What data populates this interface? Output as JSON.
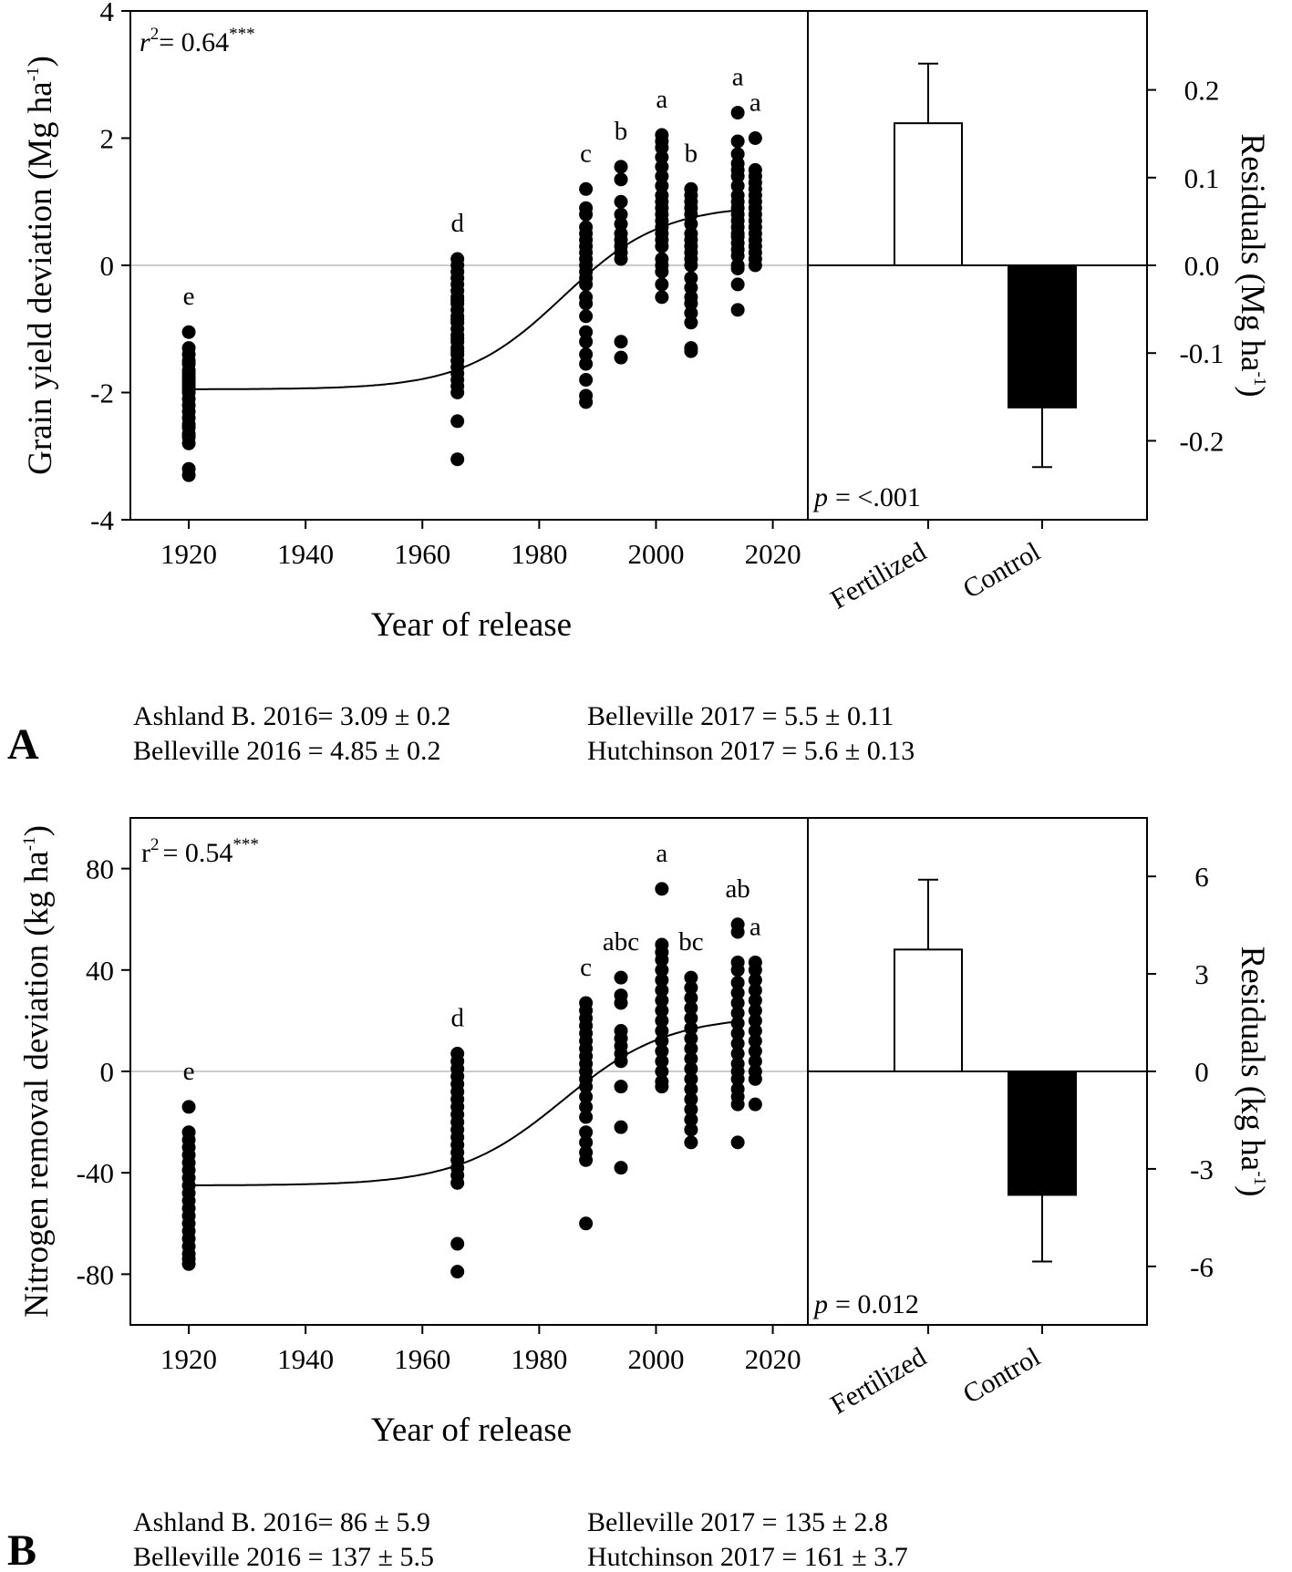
{
  "chart_data": [
    {
      "type": "scatter",
      "panel_label": "A",
      "xlabel": "Year of release",
      "ylabel": "Grain yield deviation (Mg ha",
      "ylabel_sup": "-1",
      "ylabel_close": ")",
      "xlim": [
        1910,
        2026
      ],
      "ylim": [
        -4,
        4
      ],
      "xticks": [
        "1920",
        "1940",
        "1960",
        "1980",
        "2000",
        "2020"
      ],
      "xtick_values": [
        1920,
        1940,
        1960,
        1980,
        2000,
        2020
      ],
      "yticks": [
        "-4",
        "-2",
        "0",
        "2",
        "4"
      ],
      "ytick_values": [
        -4,
        -2,
        0,
        2,
        4
      ],
      "fit": {
        "r2_prefix": "r",
        "r2_sup": "2",
        "r2_value": "= 0.64",
        "r2_stars": "***",
        "lower": -1.95,
        "upper": 0.95,
        "midpoint_year": 1984,
        "scale_years": 8.5,
        "x_start": 1920,
        "x_end": 2014
      },
      "series": [
        {
          "year": 1920,
          "letter": "e",
          "values": [
            -1.05,
            -1.3,
            -1.4,
            -1.5,
            -1.55,
            -1.65,
            -1.7,
            -1.75,
            -1.8,
            -1.85,
            -1.9,
            -1.95,
            -2.0,
            -2.1,
            -2.2,
            -2.3,
            -2.4,
            -2.5,
            -2.55,
            -2.65,
            -2.7,
            -2.8,
            -3.2,
            -3.3
          ]
        },
        {
          "year": 1966,
          "letter": "d",
          "values": [
            0.1,
            0.0,
            -0.1,
            -0.2,
            -0.3,
            -0.4,
            -0.5,
            -0.55,
            -0.6,
            -0.7,
            -0.8,
            -0.85,
            -0.9,
            -1.0,
            -1.1,
            -1.15,
            -1.2,
            -1.3,
            -1.35,
            -1.4,
            -1.5,
            -1.6,
            -1.7,
            -1.8,
            -1.9,
            -2.0,
            -2.45,
            -3.05
          ]
        },
        {
          "year": 1988,
          "letter": "c",
          "values": [
            1.2,
            0.9,
            0.8,
            0.6,
            0.5,
            0.4,
            0.3,
            0.2,
            0.1,
            0.0,
            -0.1,
            -0.2,
            -0.3,
            -0.5,
            -0.6,
            -0.8,
            -1.05,
            -1.2,
            -1.4,
            -1.55,
            -1.8,
            -2.05,
            -2.15
          ]
        },
        {
          "year": 1994,
          "letter": "b",
          "values": [
            1.55,
            1.35,
            1.0,
            0.8,
            0.65,
            0.5,
            0.4,
            0.3,
            0.2,
            0.1,
            -1.2,
            -1.45
          ]
        },
        {
          "year": 2001,
          "letter": "a",
          "values": [
            2.05,
            1.95,
            1.85,
            1.7,
            1.55,
            1.4,
            1.25,
            1.1,
            1.0,
            0.9,
            0.8,
            0.7,
            0.6,
            0.5,
            0.4,
            0.3,
            0.1,
            0.0,
            -0.1,
            -0.3,
            -0.5
          ]
        },
        {
          "year": 2006,
          "letter": "b",
          "values": [
            1.2,
            1.1,
            1.0,
            0.9,
            0.8,
            0.65,
            0.5,
            0.4,
            0.3,
            0.2,
            0.1,
            0.0,
            -0.2,
            -0.35,
            -0.5,
            -0.6,
            -0.75,
            -0.9,
            -1.3,
            -1.35
          ]
        },
        {
          "year": 2014,
          "letter": "a",
          "values": [
            2.4,
            1.95,
            1.75,
            1.6,
            1.5,
            1.4,
            1.25,
            1.1,
            1.0,
            0.9,
            0.8,
            0.7,
            0.6,
            0.5,
            0.45,
            0.35,
            0.25,
            0.15,
            0.0,
            -0.05,
            -0.3,
            -0.7
          ]
        },
        {
          "year": 2017,
          "letter": "a",
          "values": [
            2.0,
            1.5,
            1.4,
            1.3,
            1.2,
            1.1,
            1.0,
            0.9,
            0.8,
            0.7,
            0.6,
            0.5,
            0.4,
            0.3,
            0.2,
            0.1,
            0.0
          ]
        }
      ],
      "residuals": {
        "ylabel": "Residuals (Mg ha",
        "ylabel_sup": "-1",
        "ylabel_close": ")",
        "ylim": [
          -0.29,
          0.29
        ],
        "yticks": [
          "0.2",
          "0.1",
          "0.0",
          "-0.1",
          "-0.2"
        ],
        "ytick_values": [
          0.2,
          0.1,
          0.0,
          -0.1,
          -0.2
        ],
        "categories": [
          "Fertilized",
          "Control"
        ],
        "values": [
          0.162,
          -0.162
        ],
        "errors": [
          0.068,
          0.068
        ],
        "colors": [
          "#ffffff",
          "#000000"
        ],
        "p_prefix": "p",
        "p_value": "= <.001"
      },
      "notes": [
        "Ashland B. 2016= 3.09 ± 0.2",
        "Belleville 2016 = 4.85 ± 0.2",
        "Belleville 2017 = 5.5 ± 0.11",
        "Hutchinson 2017 = 5.6 ± 0.13"
      ]
    },
    {
      "type": "scatter",
      "panel_label": "B",
      "xlabel": "Year of release",
      "ylabel": "Nitrogen removal deviation (kg ha",
      "ylabel_sup": "-1",
      "ylabel_close": ")",
      "xlim": [
        1910,
        2026
      ],
      "ylim": [
        -100,
        100
      ],
      "xticks": [
        "1920",
        "1940",
        "1960",
        "1980",
        "2000",
        "2020"
      ],
      "xtick_values": [
        1920,
        1940,
        1960,
        1980,
        2000,
        2020
      ],
      "yticks": [
        "80",
        "40",
        "0",
        "-40",
        "-80"
      ],
      "ytick_values": [
        80,
        40,
        0,
        -40,
        -80
      ],
      "fit": {
        "r2_prefix": "r",
        "r2_sup": "2",
        "r2_value": "= 0.54",
        "r2_stars": "***",
        "lower": -45,
        "upper": 22,
        "midpoint_year": 1984,
        "scale_years": 9,
        "x_start": 1920,
        "x_end": 2014
      },
      "series": [
        {
          "year": 1920,
          "letter": "e",
          "values": [
            -14,
            -24,
            -27,
            -30,
            -33,
            -36,
            -39,
            -42,
            -45,
            -48,
            -51,
            -54,
            -57,
            -60,
            -63,
            -66,
            -69,
            -72,
            -74,
            -76
          ]
        },
        {
          "year": 1966,
          "letter": "d",
          "values": [
            7,
            4,
            1,
            -2,
            -5,
            -8,
            -11,
            -14,
            -17,
            -20,
            -23,
            -26,
            -29,
            -32,
            -35,
            -38,
            -41,
            -44,
            -68,
            -79
          ]
        },
        {
          "year": 1988,
          "letter": "c",
          "values": [
            27,
            24,
            21,
            18,
            15,
            12,
            9,
            6,
            3,
            0,
            -3,
            -6,
            -10,
            -14,
            -18,
            -24,
            -28,
            -32,
            -35,
            -60
          ]
        },
        {
          "year": 1994,
          "letter": "abc",
          "values": [
            37,
            30,
            27,
            16,
            13,
            10,
            7,
            4,
            -6,
            -22,
            -38
          ]
        },
        {
          "year": 2001,
          "letter": "a",
          "values": [
            72,
            50,
            47,
            44,
            40,
            36,
            32,
            28,
            24,
            20,
            16,
            12,
            8,
            4,
            0,
            -4,
            -6
          ]
        },
        {
          "year": 2006,
          "letter": "bc",
          "values": [
            37,
            33,
            29,
            25,
            21,
            17,
            13,
            9,
            5,
            1,
            -3,
            -7,
            -11,
            -15,
            -19,
            -23,
            -28
          ]
        },
        {
          "year": 2014,
          "letter": "ab",
          "values": [
            58,
            55,
            43,
            40,
            35,
            31,
            27,
            23,
            19,
            15,
            11,
            7,
            3,
            0,
            -3,
            -7,
            -10,
            -13,
            -28
          ]
        },
        {
          "year": 2017,
          "letter": "a",
          "values": [
            43,
            40,
            36,
            32,
            28,
            24,
            20,
            16,
            12,
            8,
            4,
            0,
            -3,
            -13
          ]
        }
      ],
      "residuals": {
        "ylabel": "Residuals (kg ha",
        "ylabel_sup": "-1",
        "ylabel_close": ")",
        "ylim": [
          -7.8,
          7.8
        ],
        "yticks": [
          "6",
          "3",
          "0",
          "-3",
          "-6"
        ],
        "ytick_values": [
          6,
          3,
          0,
          -3,
          -6
        ],
        "categories": [
          "Fertilized",
          "Control"
        ],
        "values": [
          3.75,
          -3.8
        ],
        "errors": [
          2.15,
          2.05
        ],
        "colors": [
          "#ffffff",
          "#000000"
        ],
        "p_prefix": "p",
        "p_value": "= 0.012"
      },
      "notes": [
        "Ashland B. 2016= 86 ± 5.9",
        "Belleville 2016 = 137 ± 5.5",
        "Belleville 2017 = 135 ± 2.8",
        "Hutchinson 2017 = 161 ± 3.7"
      ]
    }
  ]
}
